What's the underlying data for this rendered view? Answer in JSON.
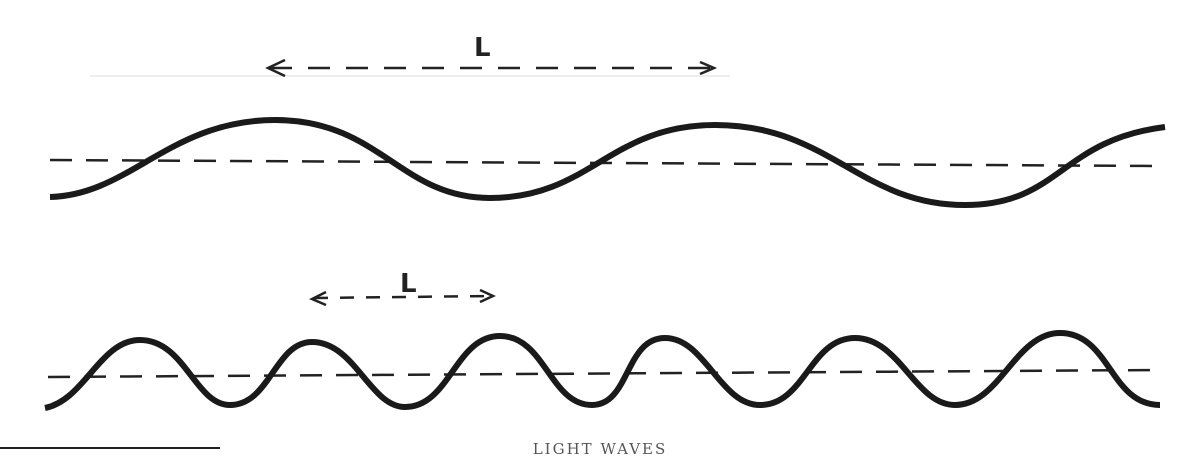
{
  "diagram": {
    "top_wave": {
      "label": "L",
      "cycles_shown": 2.5
    },
    "bottom_wave": {
      "label": "L",
      "cycles_shown": 6
    },
    "caption": "LIGHT WAVES",
    "ink_color": "#1a1a1a"
  }
}
